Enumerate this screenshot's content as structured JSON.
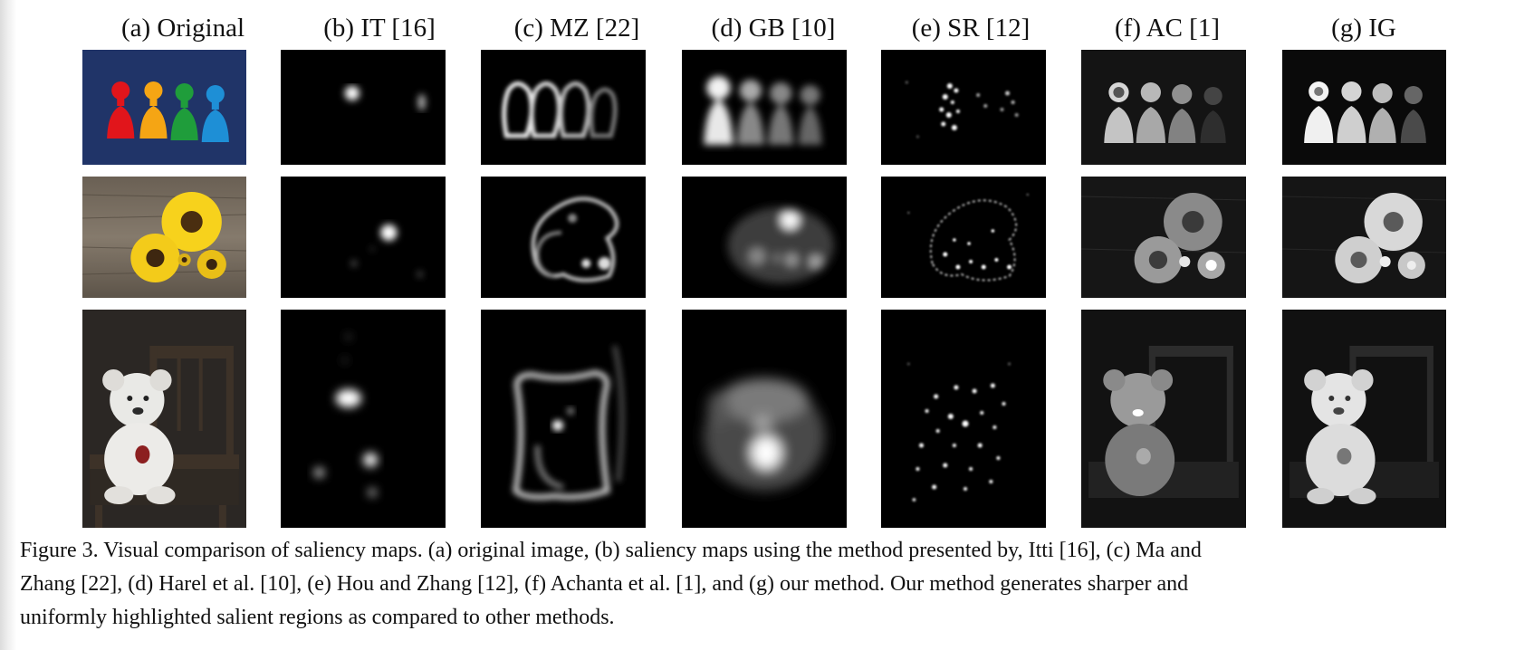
{
  "columns": [
    {
      "label": "(a) Original"
    },
    {
      "label": "(b) IT [16]"
    },
    {
      "label": "(c) MZ [22]"
    },
    {
      "label": "(d) GB [10]"
    },
    {
      "label": "(e) SR [12]"
    },
    {
      "label": "(f) AC [1]"
    },
    {
      "label": "(g) IG"
    }
  ],
  "rows": [
    {
      "subject": "pawns"
    },
    {
      "subject": "sunflowers"
    },
    {
      "subject": "teddy-bear"
    }
  ],
  "caption": {
    "line1": "Figure 3. Visual comparison of saliency maps. (a) original image, (b) saliency maps using the method presented by, Itti [16], (c) Ma and",
    "line2": "Zhang [22], (d) Harel et al. [10], (e) Hou and Zhang [12], (f) Achanta et al. [1], and (g) our method. Our method generates sharper and",
    "line3": "uniformly highlighted salient regions as compared to other methods."
  }
}
